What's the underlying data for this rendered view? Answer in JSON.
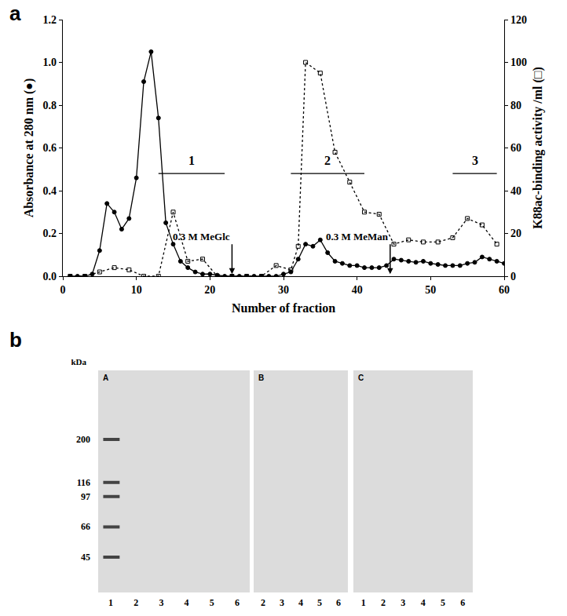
{
  "panel_a_label": "a",
  "chart_data": {
    "type": "line",
    "x_label": "Number of fraction",
    "y_label": "Absorbance at 280 nm (●)",
    "y2_label": "K88ac-binding activity /ml (□)",
    "xlim": [
      0,
      60
    ],
    "xticks": [
      0,
      10,
      20,
      30,
      40,
      50,
      60
    ],
    "ylim": [
      0,
      1.2
    ],
    "yticks": [
      {
        "value": 0,
        "label": "0.0"
      },
      0.2,
      0.4,
      0.6,
      0.8,
      {
        "value": 1,
        "label": "1.0"
      },
      1.2
    ],
    "y2lim": [
      0,
      120
    ],
    "y2ticks": [
      0,
      20,
      40,
      60,
      80,
      100,
      120
    ],
    "grid": false,
    "series": [
      {
        "color": "#000000",
        "marker": "circle",
        "line_style": "solid",
        "x": [
          1,
          2,
          3,
          4,
          5,
          6,
          7,
          8,
          9,
          10,
          11,
          12,
          13,
          14,
          15,
          16,
          17,
          18,
          19,
          20,
          21,
          22,
          23,
          24,
          25,
          26,
          27,
          28,
          29,
          30,
          31,
          32,
          33,
          34,
          35,
          36,
          37,
          38,
          39,
          40,
          41,
          42,
          43,
          44,
          45,
          46,
          47,
          48,
          49,
          50,
          51,
          52,
          53,
          54,
          55,
          56,
          57,
          58,
          59,
          60
        ],
        "values": [
          0,
          0,
          0,
          0.01,
          0.12,
          0.34,
          0.3,
          0.22,
          0.27,
          0.46,
          0.91,
          1.05,
          0.74,
          0.25,
          0.15,
          0.07,
          0.04,
          0.02,
          0.01,
          0.01,
          0.005,
          0,
          0,
          0,
          0,
          0,
          0,
          0,
          0,
          0.01,
          0.02,
          0.08,
          0.15,
          0.14,
          0.17,
          0.11,
          0.07,
          0.06,
          0.05,
          0.05,
          0.04,
          0.04,
          0.04,
          0.05,
          0.08,
          0.075,
          0.07,
          0.065,
          0.07,
          0.06,
          0.055,
          0.05,
          0.05,
          0.05,
          0.06,
          0.065,
          0.09,
          0.08,
          0.07,
          0.06
        ]
      },
      {
        "color": "#000000",
        "marker": "square-open",
        "line_style": "dotted",
        "axis": "y2",
        "x": [
          1,
          3,
          5,
          7,
          9,
          11,
          13,
          15,
          17,
          19,
          21,
          23,
          25,
          27,
          29,
          31,
          32,
          33,
          35,
          37,
          39,
          41,
          43,
          45,
          47,
          49,
          51,
          53,
          55,
          57,
          59
        ],
        "values": [
          0,
          0,
          2,
          4,
          3,
          0,
          0,
          30,
          7,
          8,
          0,
          0,
          0,
          0,
          5,
          3,
          14,
          100,
          95,
          58,
          44,
          30,
          29,
          15,
          17,
          16,
          16,
          18,
          27,
          24,
          15
        ]
      }
    ],
    "annotations": [
      {
        "text": "0.3 M MeGlc",
        "x": 23,
        "y": 0.15,
        "arrow_y": 0.01
      },
      {
        "text": "0.3 M MeMan",
        "x": 44.5,
        "y": 0.15,
        "arrow_y": 0.01
      }
    ],
    "pools": [
      {
        "label": "1",
        "from": 13,
        "to": 22,
        "y": 0.48
      },
      {
        "label": "2",
        "from": 31,
        "to": 41,
        "y": 0.48
      },
      {
        "label": "3",
        "from": 53,
        "to": 59,
        "y": 0.48
      }
    ]
  },
  "figure_b": {
    "label": "b",
    "unit": "kDa",
    "markers": [
      200,
      116,
      97,
      66,
      45
    ],
    "panels": [
      {
        "label": "A",
        "lanes": [
          "1",
          "2",
          "3",
          "4",
          "5",
          "6"
        ]
      },
      {
        "label": "B",
        "lanes": [
          "2",
          "3",
          "4",
          "5",
          "6"
        ]
      },
      {
        "label": "C",
        "lanes": [
          "1",
          "2",
          "3",
          "4",
          "5",
          "6"
        ]
      }
    ]
  }
}
